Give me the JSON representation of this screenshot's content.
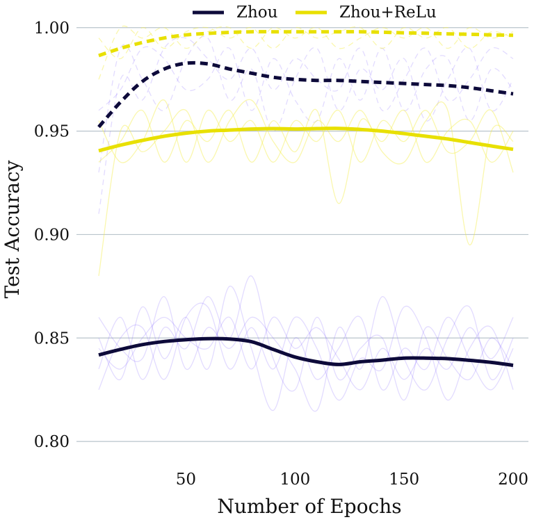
{
  "chart_data": {
    "type": "line",
    "xlabel": "Number of Epochs",
    "ylabel": "Test Accuracy",
    "xlim": [
      3,
      207
    ],
    "ylim": [
      0.795,
      1.01
    ],
    "xticks": [
      50,
      100,
      150,
      200
    ],
    "yticks": [
      0.8,
      0.85,
      0.9,
      0.95,
      1.0
    ],
    "ytick_labels": [
      "0.80",
      "0.85",
      "0.90",
      "0.95",
      "1.00"
    ],
    "grid": "horizontal",
    "legend": {
      "placement": "top-center",
      "entries": [
        {
          "label": "Zhou",
          "color": "#0d0a3a"
        },
        {
          "label": "Zhou+ReLu",
          "color": "#e8e000"
        }
      ]
    },
    "x": [
      10,
      20,
      30,
      40,
      50,
      60,
      70,
      80,
      90,
      100,
      110,
      120,
      130,
      140,
      150,
      160,
      170,
      180,
      190,
      200
    ],
    "series": [
      {
        "name": "Zhou",
        "variant": "test",
        "style": "solid",
        "color": "#0d0a3a",
        "values": [
          0.8418,
          0.8445,
          0.8468,
          0.8483,
          0.8492,
          0.8497,
          0.8495,
          0.8482,
          0.8445,
          0.8408,
          0.8385,
          0.8372,
          0.8385,
          0.8393,
          0.8403,
          0.8403,
          0.84,
          0.8392,
          0.8382,
          0.8368
        ]
      },
      {
        "name": "Zhou",
        "variant": "train",
        "style": "dashed",
        "color": "#0d0a3a",
        "values": [
          0.952,
          0.964,
          0.974,
          0.98,
          0.9828,
          0.9825,
          0.98,
          0.978,
          0.976,
          0.975,
          0.9745,
          0.9745,
          0.974,
          0.9735,
          0.973,
          0.9725,
          0.972,
          0.971,
          0.9695,
          0.968
        ]
      },
      {
        "name": "Zhou+ReLu",
        "variant": "test",
        "style": "solid",
        "color": "#e8e000",
        "values": [
          0.9405,
          0.9432,
          0.9455,
          0.9475,
          0.949,
          0.95,
          0.9505,
          0.951,
          0.9512,
          0.951,
          0.9512,
          0.9513,
          0.9508,
          0.95,
          0.9488,
          0.9475,
          0.9462,
          0.9445,
          0.9428,
          0.9412
        ]
      },
      {
        "name": "Zhou+ReLu",
        "variant": "train",
        "style": "dashed",
        "color": "#e8e000",
        "values": [
          0.9865,
          0.99,
          0.9928,
          0.995,
          0.9965,
          0.9972,
          0.9977,
          0.998,
          0.998,
          0.998,
          0.998,
          0.998,
          0.998,
          0.9978,
          0.9975,
          0.9973,
          0.997,
          0.9968,
          0.9965,
          0.9963
        ]
      }
    ],
    "background_runs": {
      "note": "faint individual-run curves behind the mean curves",
      "x": [
        10,
        20,
        30,
        40,
        50,
        60,
        70,
        80,
        90,
        100,
        110,
        120,
        130,
        140,
        150,
        160,
        170,
        180,
        190,
        200
      ],
      "zhou_test": [
        [
          0.835,
          0.86,
          0.83,
          0.855,
          0.845,
          0.87,
          0.85,
          0.88,
          0.84,
          0.825,
          0.86,
          0.83,
          0.845,
          0.85,
          0.82,
          0.855,
          0.84,
          0.83,
          0.85,
          0.835
        ],
        [
          0.85,
          0.83,
          0.865,
          0.84,
          0.86,
          0.835,
          0.875,
          0.845,
          0.815,
          0.85,
          0.83,
          0.845,
          0.86,
          0.825,
          0.845,
          0.835,
          0.86,
          0.84,
          0.825,
          0.845
        ],
        [
          0.86,
          0.845,
          0.84,
          0.87,
          0.835,
          0.855,
          0.845,
          0.86,
          0.85,
          0.835,
          0.815,
          0.855,
          0.835,
          0.87,
          0.84,
          0.825,
          0.85,
          0.865,
          0.83,
          0.85
        ],
        [
          0.825,
          0.85,
          0.855,
          0.83,
          0.86,
          0.865,
          0.835,
          0.855,
          0.835,
          0.86,
          0.845,
          0.82,
          0.84,
          0.835,
          0.865,
          0.85,
          0.82,
          0.845,
          0.855,
          0.825
        ],
        [
          0.845,
          0.835,
          0.85,
          0.86,
          0.85,
          0.845,
          0.86,
          0.835,
          0.86,
          0.845,
          0.855,
          0.84,
          0.825,
          0.845,
          0.83,
          0.845,
          0.835,
          0.855,
          0.84,
          0.86
        ]
      ],
      "zhou_train": [
        [
          0.93,
          0.99,
          0.975,
          0.96,
          0.985,
          0.995,
          0.965,
          0.98,
          0.95,
          0.975,
          0.99,
          0.96,
          0.98,
          0.97,
          0.985,
          0.955,
          0.975,
          0.99,
          0.96,
          0.975
        ],
        [
          0.96,
          0.97,
          0.99,
          0.985,
          0.97,
          0.975,
          0.99,
          0.96,
          0.985,
          0.965,
          0.955,
          0.985,
          0.965,
          0.99,
          0.96,
          0.98,
          0.985,
          0.955,
          0.98,
          0.97
        ],
        [
          0.91,
          0.975,
          0.965,
          0.99,
          0.995,
          0.985,
          0.975,
          0.99,
          0.97,
          0.985,
          0.975,
          0.97,
          0.99,
          0.96,
          0.975,
          0.99,
          0.965,
          0.975,
          0.99,
          0.985
        ]
      ],
      "relu_test": [
        [
          0.935,
          0.945,
          0.96,
          0.935,
          0.955,
          0.945,
          0.96,
          0.935,
          0.955,
          0.94,
          0.96,
          0.915,
          0.955,
          0.945,
          0.96,
          0.935,
          0.95,
          0.955,
          0.935,
          0.95
        ],
        [
          0.955,
          0.935,
          0.945,
          0.965,
          0.935,
          0.96,
          0.945,
          0.955,
          0.935,
          0.955,
          0.945,
          0.96,
          0.935,
          0.955,
          0.945,
          0.96,
          0.94,
          0.945,
          0.96,
          0.93
        ],
        [
          0.88,
          0.95,
          0.94,
          0.95,
          0.96,
          0.935,
          0.955,
          0.965,
          0.945,
          0.935,
          0.955,
          0.945,
          0.96,
          0.94,
          0.935,
          0.955,
          0.96,
          0.895,
          0.95,
          0.945
        ]
      ],
      "relu_train": [
        [
          0.995,
          0.985,
          1.0,
          0.99,
          0.998,
          1.0,
          0.995,
          1.0,
          0.99,
          1.0,
          0.995,
          0.998,
          1.0,
          0.99,
          1.0,
          0.995,
          1.0,
          0.99,
          0.998,
          0.995
        ],
        [
          0.975,
          1.0,
          0.995,
          1.0,
          0.99,
          0.998,
          1.0,
          0.99,
          1.0,
          0.995,
          1.0,
          0.99,
          0.995,
          1.0,
          0.995,
          1.0,
          0.99,
          1.0,
          0.995,
          0.998
        ]
      ]
    }
  }
}
